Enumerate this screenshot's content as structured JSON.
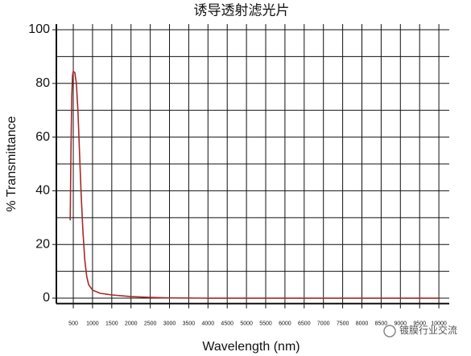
{
  "chart_data": {
    "type": "line",
    "title": "诱导透射滤光片",
    "x_label": "Wavelength (nm)",
    "y_label": "% Transmittance",
    "watermark": "镀膜行业交流",
    "x": [
      420,
      440,
      460,
      480,
      500,
      540,
      580,
      620,
      660,
      700,
      750,
      800,
      850,
      900,
      1000,
      1200,
      1500,
      2000,
      2500,
      3000,
      4000,
      10000
    ],
    "series": [
      {
        "name": "Transmittance",
        "color": "#a8282a",
        "values": [
          29,
          55,
          75,
          83,
          84.5,
          84,
          80,
          70,
          55,
          40,
          25,
          14,
          8,
          5,
          3,
          1.8,
          1.2,
          0.6,
          0.3,
          0.1,
          0,
          0
        ]
      }
    ],
    "xlim": [
      60,
      10270
    ],
    "xticks": [
      500,
      1000,
      1500,
      2000,
      2500,
      3000,
      3500,
      4000,
      4500,
      5000,
      5500,
      6000,
      6500,
      7000,
      7500,
      8000,
      8500,
      9000,
      9500,
      10000
    ],
    "ylim": [
      -2,
      100
    ],
    "yticks": [
      0,
      20,
      40,
      60,
      80,
      100
    ],
    "yminorticks": [
      10,
      30,
      50,
      70,
      90
    ],
    "grid": true
  }
}
